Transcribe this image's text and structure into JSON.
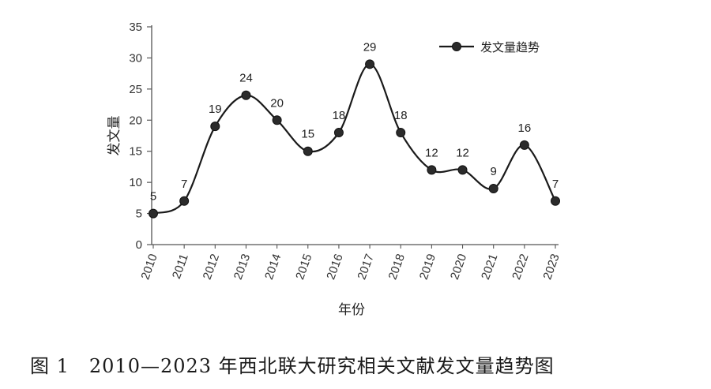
{
  "caption": "图 1　2010—2023 年西北联大研究相关文献发文量趋势图",
  "chart_data": {
    "type": "line",
    "categories": [
      "2010",
      "2011",
      "2012",
      "2013",
      "2014",
      "2015",
      "2016",
      "2017",
      "2018",
      "2019",
      "2020",
      "2021",
      "2022",
      "2023"
    ],
    "series": [
      {
        "name": "发文量趋势",
        "values": [
          5,
          7,
          19,
          24,
          20,
          15,
          18,
          29,
          18,
          12,
          12,
          9,
          16,
          7
        ]
      }
    ],
    "xlabel": "年份",
    "ylabel": "发文量",
    "ylim": [
      0,
      35
    ],
    "yticks": [
      0,
      5,
      10,
      15,
      20,
      25,
      30,
      35
    ],
    "grid": false,
    "smooth": true,
    "legend_position": "top-right",
    "colors": {
      "line": "#1a1a1a",
      "marker": "#2b2b2b",
      "axis": "#555555"
    }
  }
}
